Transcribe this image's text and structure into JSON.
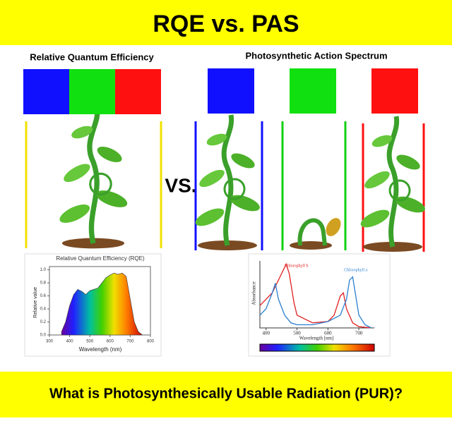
{
  "header": {
    "title": "RQE vs. PAS"
  },
  "left": {
    "heading": "Relative Quantum Efficiency",
    "colors": [
      "#1010ff",
      "#10e010",
      "#ff1010"
    ]
  },
  "right": {
    "heading": "Photosynthetic Action Spectrum",
    "colors": [
      "#1010ff",
      "#10e010",
      "#ff1010"
    ]
  },
  "vs": "VS.",
  "rqe_chart": {
    "type": "area",
    "title": "Relative Quantum Efficiency (RQE)",
    "x_label": "Wavelength (nm)",
    "y_label": "Relative value",
    "x": [
      360,
      380,
      400,
      420,
      440,
      460,
      480,
      500,
      520,
      540,
      560,
      580,
      600,
      620,
      640,
      660,
      680,
      700,
      720,
      740,
      760
    ],
    "values": [
      0.05,
      0.2,
      0.45,
      0.62,
      0.7,
      0.67,
      0.62,
      0.68,
      0.7,
      0.72,
      0.8,
      0.88,
      0.92,
      0.95,
      0.93,
      0.95,
      0.9,
      0.55,
      0.2,
      0.05,
      0.0
    ],
    "xlim": [
      300,
      800
    ],
    "ylim": [
      0,
      1.05
    ],
    "xticks": [
      300,
      400,
      500,
      600,
      700,
      800
    ],
    "yticks": [
      {
        "value": 0,
        "label": "0.0"
      },
      0.2,
      0.4,
      0.6,
      0.8,
      {
        "value": 1,
        "label": "1.0"
      }
    ]
  },
  "pas_chart": {
    "type": "line",
    "y_label": "Absorbance",
    "x_label": "Wavelength [nm]",
    "xlim": [
      380,
      750
    ],
    "ylim": [
      0,
      1.05
    ],
    "xticks": [
      400,
      500,
      600,
      700
    ],
    "series": [
      {
        "name": "Chlorophyll b",
        "color": "#e02020",
        "x": [
          380,
          400,
          420,
          440,
          455,
          465,
          475,
          490,
          500,
          550,
          600,
          620,
          640,
          650,
          660,
          680,
          700,
          740
        ],
        "values": [
          0.35,
          0.45,
          0.55,
          0.75,
          0.9,
          1.0,
          0.85,
          0.4,
          0.2,
          0.08,
          0.1,
          0.2,
          0.5,
          0.55,
          0.3,
          0.08,
          0.02,
          0.0
        ]
      },
      {
        "name": "Chlorophyll a",
        "color": "#2a7fd0",
        "x": [
          380,
          400,
          420,
          430,
          440,
          460,
          480,
          500,
          550,
          600,
          640,
          660,
          670,
          680,
          690,
          700,
          720,
          740
        ],
        "values": [
          0.2,
          0.3,
          0.55,
          0.7,
          0.45,
          0.2,
          0.08,
          0.05,
          0.05,
          0.1,
          0.2,
          0.45,
          0.75,
          0.8,
          0.5,
          0.2,
          0.05,
          0.0
        ]
      }
    ]
  },
  "footer": {
    "question": "What is Photosynthesically Usable Radiation (PUR)?"
  }
}
